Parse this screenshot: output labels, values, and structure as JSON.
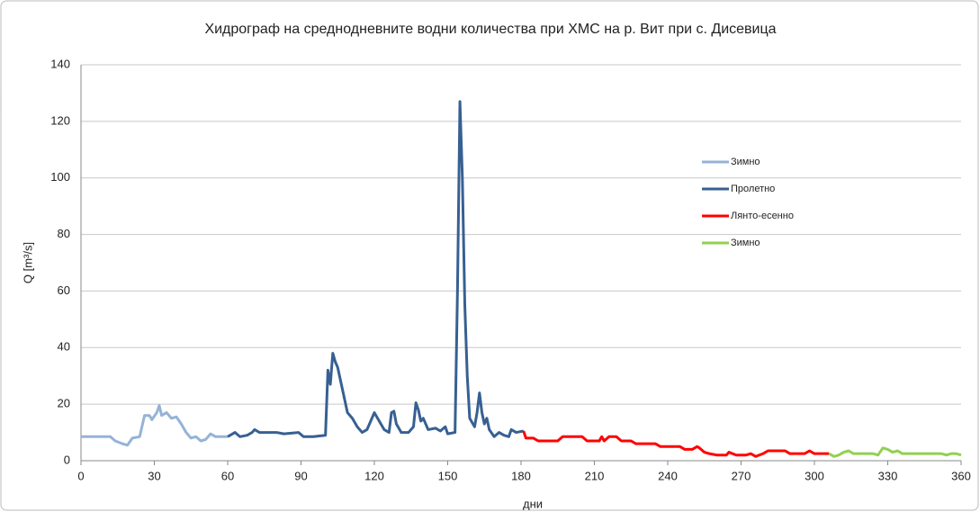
{
  "chart_data": {
    "type": "line",
    "title": "Хидрограф на среднодневните водни количества при ХМС на р. Вит при с. Дисевица",
    "xlabel": "дни",
    "ylabel": "Q [m³/s]",
    "xlim": [
      0,
      360
    ],
    "xticks": [
      0,
      30,
      60,
      90,
      120,
      150,
      180,
      210,
      240,
      270,
      300,
      330,
      360
    ],
    "ylim": [
      0,
      140
    ],
    "yticks": [
      0,
      20,
      40,
      60,
      80,
      100,
      120,
      140
    ],
    "grid": true,
    "legend": "right",
    "series": [
      {
        "name": "Зимно",
        "color": "#95b3d7",
        "x": [
          0,
          5,
          12,
          14,
          17,
          19,
          21,
          24,
          26,
          28,
          29,
          31,
          32,
          33,
          35,
          37,
          39,
          41,
          43,
          45,
          47,
          49,
          51,
          53,
          55,
          60
        ],
        "values": [
          8.5,
          8.5,
          8.5,
          7,
          6,
          5.5,
          8,
          8.5,
          16,
          16,
          14.5,
          17,
          19.5,
          16,
          17,
          15,
          15.5,
          13,
          10,
          8,
          8.5,
          7,
          7.5,
          9.5,
          8.5,
          8.5
        ]
      },
      {
        "name": "Пролетно",
        "color": "#376092",
        "x": [
          60,
          63,
          65,
          68,
          70,
          71,
          73,
          80,
          83,
          89,
          91,
          95,
          100,
          101,
          102,
          103,
          104,
          105,
          107,
          109,
          111,
          113,
          115,
          117,
          119,
          120,
          122,
          124,
          126,
          127,
          128,
          129,
          131,
          134,
          136,
          137,
          138,
          139,
          140,
          142,
          145,
          147,
          149,
          150,
          153,
          154,
          155,
          156,
          157,
          158,
          159,
          161,
          162,
          163,
          164,
          165,
          166,
          167,
          169,
          171,
          173,
          175,
          176,
          178,
          181
        ],
        "values": [
          8.5,
          10,
          8.5,
          9,
          10,
          11,
          10,
          10,
          9.5,
          10,
          8.5,
          8.5,
          9,
          32,
          27,
          38,
          35,
          33,
          25,
          17,
          15,
          12,
          10,
          11,
          15,
          17,
          14,
          11,
          10,
          17,
          17.5,
          13,
          10,
          10,
          12,
          20.5,
          18,
          14,
          15,
          11,
          11.5,
          10.5,
          12,
          9.5,
          10,
          60,
          127,
          100,
          55,
          30,
          15,
          12,
          17,
          24,
          17,
          13,
          15,
          11,
          8.5,
          10,
          9,
          8.5,
          11,
          10,
          10.5
        ]
      },
      {
        "name": "Лянто-есенно",
        "color": "#ff0000",
        "x": [
          181,
          182,
          185,
          187,
          195,
          197,
          205,
          207,
          212,
          213,
          214,
          216,
          219,
          221,
          225,
          227,
          235,
          237,
          245,
          247,
          250,
          252,
          253,
          255,
          257,
          260,
          264,
          265,
          268,
          272,
          274,
          276,
          279,
          281,
          288,
          290,
          296,
          298,
          300,
          306
        ],
        "values": [
          10.5,
          8,
          8,
          7,
          7,
          8.5,
          8.5,
          7,
          7,
          8.5,
          7,
          8.5,
          8.5,
          7,
          7,
          6,
          6,
          5,
          5,
          4,
          4,
          5,
          4.5,
          3,
          2.5,
          2,
          2,
          3,
          2,
          2,
          2.5,
          1.5,
          2.5,
          3.5,
          3.5,
          2.5,
          2.5,
          3.5,
          2.5,
          2.5
        ]
      },
      {
        "name": "Зимно",
        "color": "#92d050",
        "x": [
          306,
          308,
          310,
          312,
          314,
          316,
          324,
          326,
          328,
          330,
          332,
          334,
          336,
          352,
          354,
          356,
          358,
          360
        ],
        "values": [
          2.5,
          1.5,
          2,
          3,
          3.5,
          2.5,
          2.5,
          2,
          4.5,
          4,
          3,
          3.5,
          2.5,
          2.5,
          2,
          2.5,
          2.5,
          2
        ]
      }
    ]
  }
}
